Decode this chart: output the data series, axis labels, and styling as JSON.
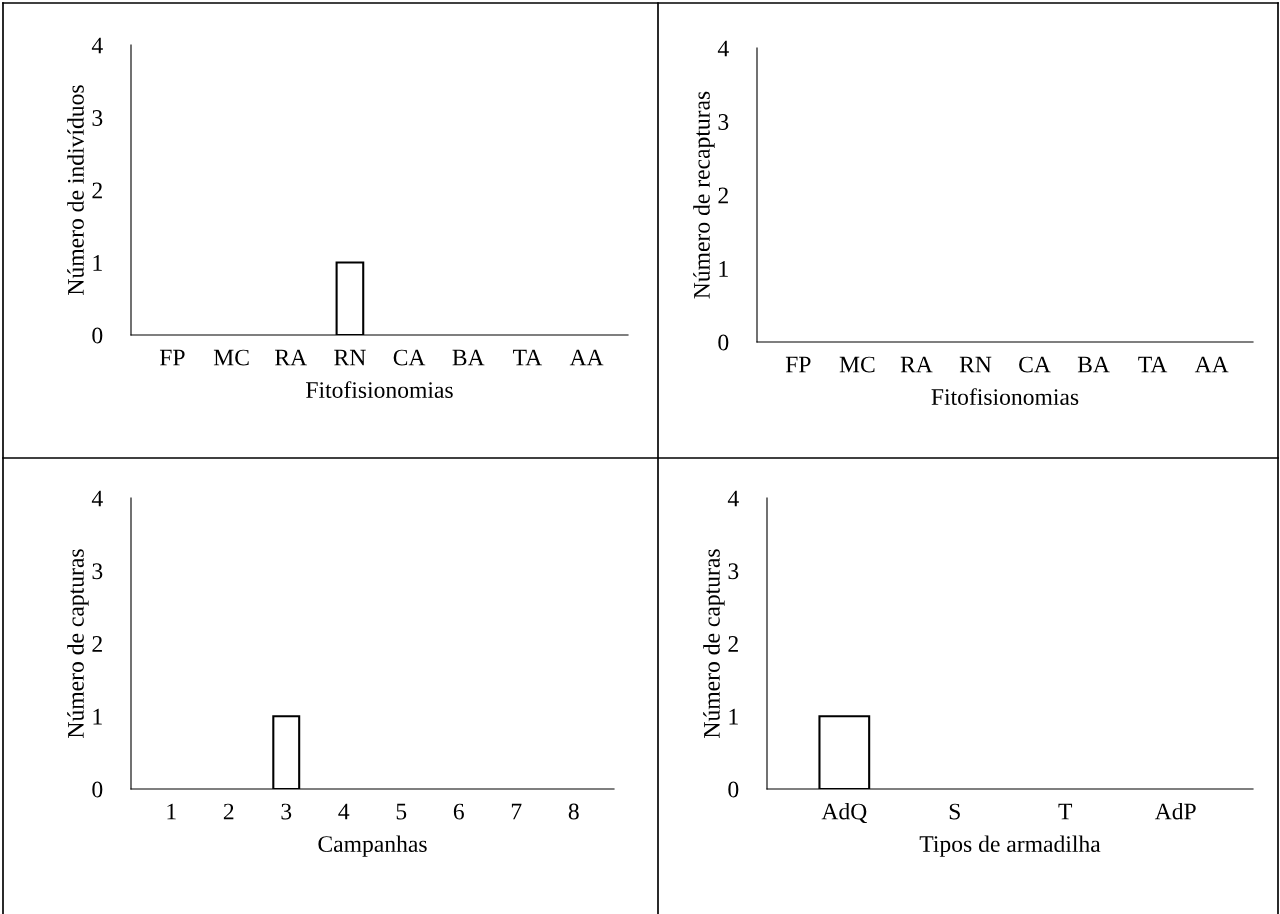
{
  "chart_data": [
    {
      "type": "bar",
      "categories": [
        "FP",
        "MC",
        "RA",
        "RN",
        "CA",
        "BA",
        "TA",
        "AA"
      ],
      "values": [
        0,
        0,
        0,
        1,
        0,
        0,
        0,
        0
      ],
      "color": "#ffffff",
      "xlabel": "Fitofisionomias",
      "ylabel": "Número de indivíduos",
      "ylim": [
        0,
        4
      ],
      "yticks": [
        0,
        1,
        2,
        3,
        4
      ]
    },
    {
      "type": "bar",
      "categories": [
        "FP",
        "MC",
        "RA",
        "RN",
        "CA",
        "BA",
        "TA",
        "AA"
      ],
      "values": [
        0,
        0,
        0,
        0,
        0,
        0,
        0,
        0
      ],
      "color": "#ffffff",
      "xlabel": "Fitofisionomias",
      "ylabel": "Número de recapturas",
      "ylim": [
        0,
        4
      ],
      "yticks": [
        0,
        1,
        2,
        3,
        4
      ]
    },
    {
      "type": "bar",
      "categories": [
        "1",
        "2",
        "3",
        "4",
        "5",
        "6",
        "7",
        "8"
      ],
      "values": [
        0,
        0,
        1,
        0,
        0,
        0,
        0,
        0
      ],
      "color": "#ffffff",
      "xlabel": "Campanhas",
      "ylabel": "Número de capturas",
      "ylim": [
        0,
        4
      ],
      "yticks": [
        0,
        1,
        2,
        3,
        4
      ]
    },
    {
      "type": "bar",
      "categories": [
        "AdQ",
        "S",
        "T",
        "AdP"
      ],
      "values": [
        1,
        0,
        0,
        0
      ],
      "color": "#ffffff",
      "xlabel": "Tipos de armadilha",
      "ylabel": "Número de capturas",
      "ylim": [
        0,
        4
      ],
      "yticks": [
        0,
        1,
        2,
        3,
        4
      ]
    }
  ]
}
